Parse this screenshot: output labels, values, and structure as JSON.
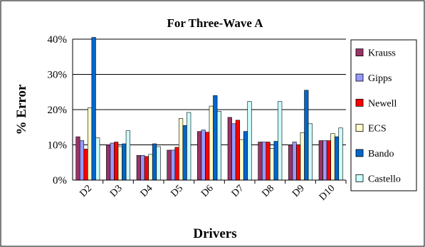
{
  "chart_data": {
    "type": "bar",
    "title": "For Three-Wave A",
    "xlabel": "Drivers",
    "ylabel": "% Error",
    "ylim": [
      0,
      40
    ],
    "yticks": [
      0,
      10,
      20,
      30,
      40
    ],
    "ytick_labels": [
      "0%",
      "10%",
      "20%",
      "30%",
      "40%"
    ],
    "grid": true,
    "legend_position": "right",
    "categories": [
      "D2",
      "D3",
      "D4",
      "D5",
      "D6",
      "D7",
      "D8",
      "D9",
      "D10"
    ],
    "series": [
      {
        "name": "Krauss",
        "color": "#993366",
        "values": [
          12.3,
          10.0,
          7.0,
          8.5,
          13.8,
          17.8,
          10.8,
          10.0,
          11.2
        ]
      },
      {
        "name": "Gipps",
        "color": "#9999ff",
        "values": [
          11.2,
          10.5,
          7.0,
          8.5,
          14.2,
          16.0,
          10.8,
          10.8,
          11.2
        ]
      },
      {
        "name": "Newell",
        "color": "#ff0000",
        "values": [
          8.8,
          10.8,
          6.7,
          9.3,
          13.6,
          17.0,
          10.8,
          10.0,
          11.2
        ]
      },
      {
        "name": "ECS",
        "color": "#ffffcc",
        "values": [
          20.5,
          9.5,
          7.3,
          17.5,
          21.0,
          11.5,
          9.0,
          13.5,
          13.2
        ]
      },
      {
        "name": "Bando",
        "color": "#0066cc",
        "values": [
          40.5,
          10.3,
          10.3,
          15.5,
          24.0,
          13.8,
          11.0,
          25.5,
          12.3
        ]
      },
      {
        "name": "Castello",
        "color": "#ccffff",
        "values": [
          12.0,
          14.0,
          9.5,
          19.2,
          19.5,
          22.3,
          22.3,
          16.0,
          14.8
        ]
      }
    ]
  }
}
